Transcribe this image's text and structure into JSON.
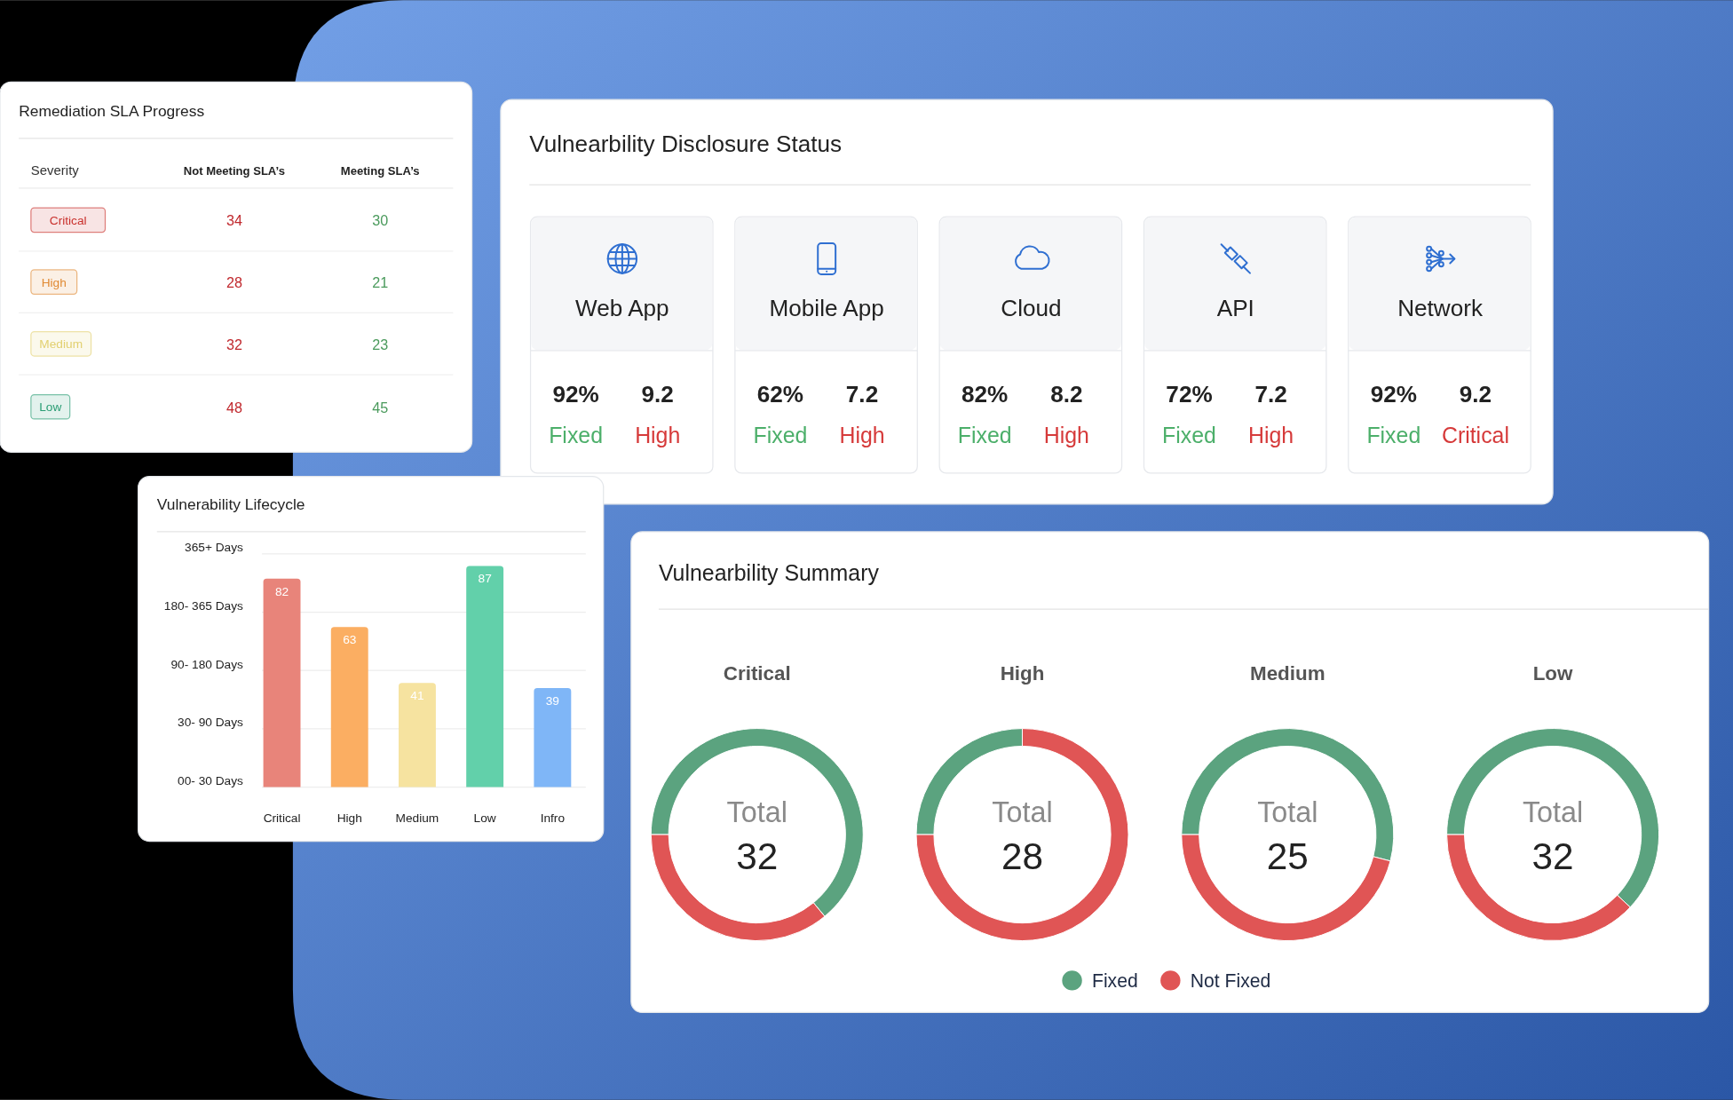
{
  "chart_data": [
    {
      "type": "other",
      "title": "Remediation SLA Progress",
      "ylabel": "Severity",
      "categories": [
        "Critical",
        "High",
        "Medium",
        "Low"
      ],
      "series": [
        {
          "name": "Not Meeting SLA’s",
          "values": [
            34,
            28,
            32,
            48
          ]
        },
        {
          "name": "Meeting SLA’s",
          "values": [
            30,
            21,
            23,
            45
          ]
        }
      ],
      "data_labels": true
    },
    {
      "type": "other",
      "title": "Vulnearbility Disclosure Status",
      "categories": [
        "Web App",
        "Mobile App",
        "Cloud",
        "API",
        "Network"
      ],
      "annotations": [
        "92%",
        "Fixed",
        "9.2",
        "High",
        "62%",
        "Fixed",
        "7.2",
        "High",
        "82%",
        "Fixed",
        "8.2",
        "High",
        "72%",
        "Fixed",
        "7.2",
        "High",
        "92%",
        "Fixed",
        "9.2",
        "Critical"
      ]
    },
    {
      "type": "bar",
      "title": "Vulnerability Lifecycle",
      "categories": [
        "Critical",
        "High",
        "Medium",
        "Low",
        "Infro"
      ],
      "values": [
        82,
        63,
        41,
        87,
        39
      ],
      "colors": [
        "#e8847a",
        "#fbae62",
        "#f6e3a0",
        "#62d0aa",
        "#7fb6f7"
      ],
      "annotations": [
        "00- 30 Days",
        "30- 90 Days",
        "90- 180 Days",
        "180- 365 Days",
        "365+ Days"
      ],
      "data_labels": true
    },
    {
      "type": "other",
      "title": "Vulnearbility Summary"
    },
    {
      "type": "donut",
      "title": "Critical",
      "categories": [
        "Fixed",
        "Not Fixed"
      ],
      "values": [
        64,
        36
      ],
      "colors": [
        "#5ba37f",
        "#e05555"
      ],
      "annotations": [
        "Total",
        "32"
      ],
      "legend": "bottom"
    },
    {
      "type": "donut",
      "title": "High",
      "values": [
        25,
        75
      ],
      "colors": [
        "#5ba37f",
        "#e05555"
      ],
      "annotations": [
        "Total",
        "28"
      ]
    },
    {
      "type": "donut",
      "title": "Medium",
      "values": [
        54,
        46
      ],
      "colors": [
        "#5ba37f",
        "#e05555"
      ],
      "annotations": [
        "Total",
        "25"
      ]
    },
    {
      "type": "donut",
      "title": "Low",
      "values": [
        62,
        38
      ],
      "colors": [
        "#5ba37f",
        "#e05555"
      ],
      "annotations": [
        "Total",
        "32"
      ]
    }
  ]
}
